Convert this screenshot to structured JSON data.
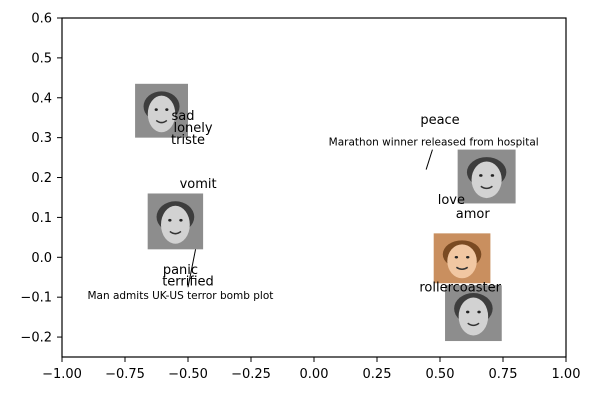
{
  "chart_data": {
    "type": "scatter",
    "title": "",
    "xlabel": "",
    "ylabel": "",
    "xlim": [
      -1.0,
      1.0
    ],
    "ylim": [
      -0.25,
      0.6
    ],
    "x_ticks": [
      -1.0,
      -0.75,
      -0.5,
      -0.25,
      0.0,
      0.25,
      0.5,
      0.75,
      1.0
    ],
    "y_ticks": [
      -0.2,
      -0.1,
      0.0,
      0.1,
      0.2,
      0.3,
      0.4,
      0.5,
      0.6
    ],
    "x_tick_labels": [
      "−1.00",
      "−0.75",
      "−0.50",
      "−0.25",
      "0.00",
      "0.25",
      "0.50",
      "0.75",
      "1.00"
    ],
    "y_tick_labels": [
      "−0.2",
      "−0.1",
      "0.0",
      "0.1",
      "0.2",
      "0.3",
      "0.4",
      "0.5",
      "0.6"
    ],
    "grid": false,
    "words": [
      {
        "text": "sad",
        "x": -0.52,
        "y": 0.355
      },
      {
        "text": "lonely",
        "x": -0.48,
        "y": 0.325
      },
      {
        "text": "triste",
        "x": -0.5,
        "y": 0.295
      },
      {
        "text": "vomit",
        "x": -0.46,
        "y": 0.185
      },
      {
        "text": "panic",
        "x": -0.53,
        "y": -0.03
      },
      {
        "text": "terrified",
        "x": -0.5,
        "y": -0.06
      },
      {
        "text": "peace",
        "x": 0.5,
        "y": 0.345
      },
      {
        "text": "love",
        "x": 0.545,
        "y": 0.145
      },
      {
        "text": "amor",
        "x": 0.63,
        "y": 0.11
      },
      {
        "text": "rollercoaster",
        "x": 0.58,
        "y": -0.075
      }
    ],
    "headlines": [
      {
        "text": "Marathon winner released from hospital",
        "x": 0.475,
        "y": 0.29,
        "pointer": [
          0.47,
          0.27,
          0.445,
          0.22
        ]
      },
      {
        "text": "Man admits UK-US terror bomb plot",
        "x": -0.53,
        "y": -0.095,
        "pointer": [
          -0.47,
          0.02,
          -0.5,
          -0.075
        ]
      }
    ],
    "faces": [
      {
        "name": "sad-woman-face-icon",
        "x_range": [
          -0.71,
          -0.5
        ],
        "y_range": [
          0.3,
          0.435
        ],
        "style": "grayscale"
      },
      {
        "name": "crying-baby-face-icon",
        "x_range": [
          -0.66,
          -0.44
        ],
        "y_range": [
          0.02,
          0.16
        ],
        "style": "grayscale"
      },
      {
        "name": "smiling-man-face-icon",
        "x_range": [
          0.57,
          0.8
        ],
        "y_range": [
          0.135,
          0.27
        ],
        "style": "grayscale"
      },
      {
        "name": "smiling-woman-face-icon",
        "x_range": [
          0.475,
          0.7
        ],
        "y_range": [
          -0.065,
          0.06
        ],
        "style": "color"
      },
      {
        "name": "laughing-boy-face-icon",
        "x_range": [
          0.52,
          0.745
        ],
        "y_range": [
          -0.21,
          -0.07
        ],
        "style": "grayscale"
      }
    ]
  }
}
